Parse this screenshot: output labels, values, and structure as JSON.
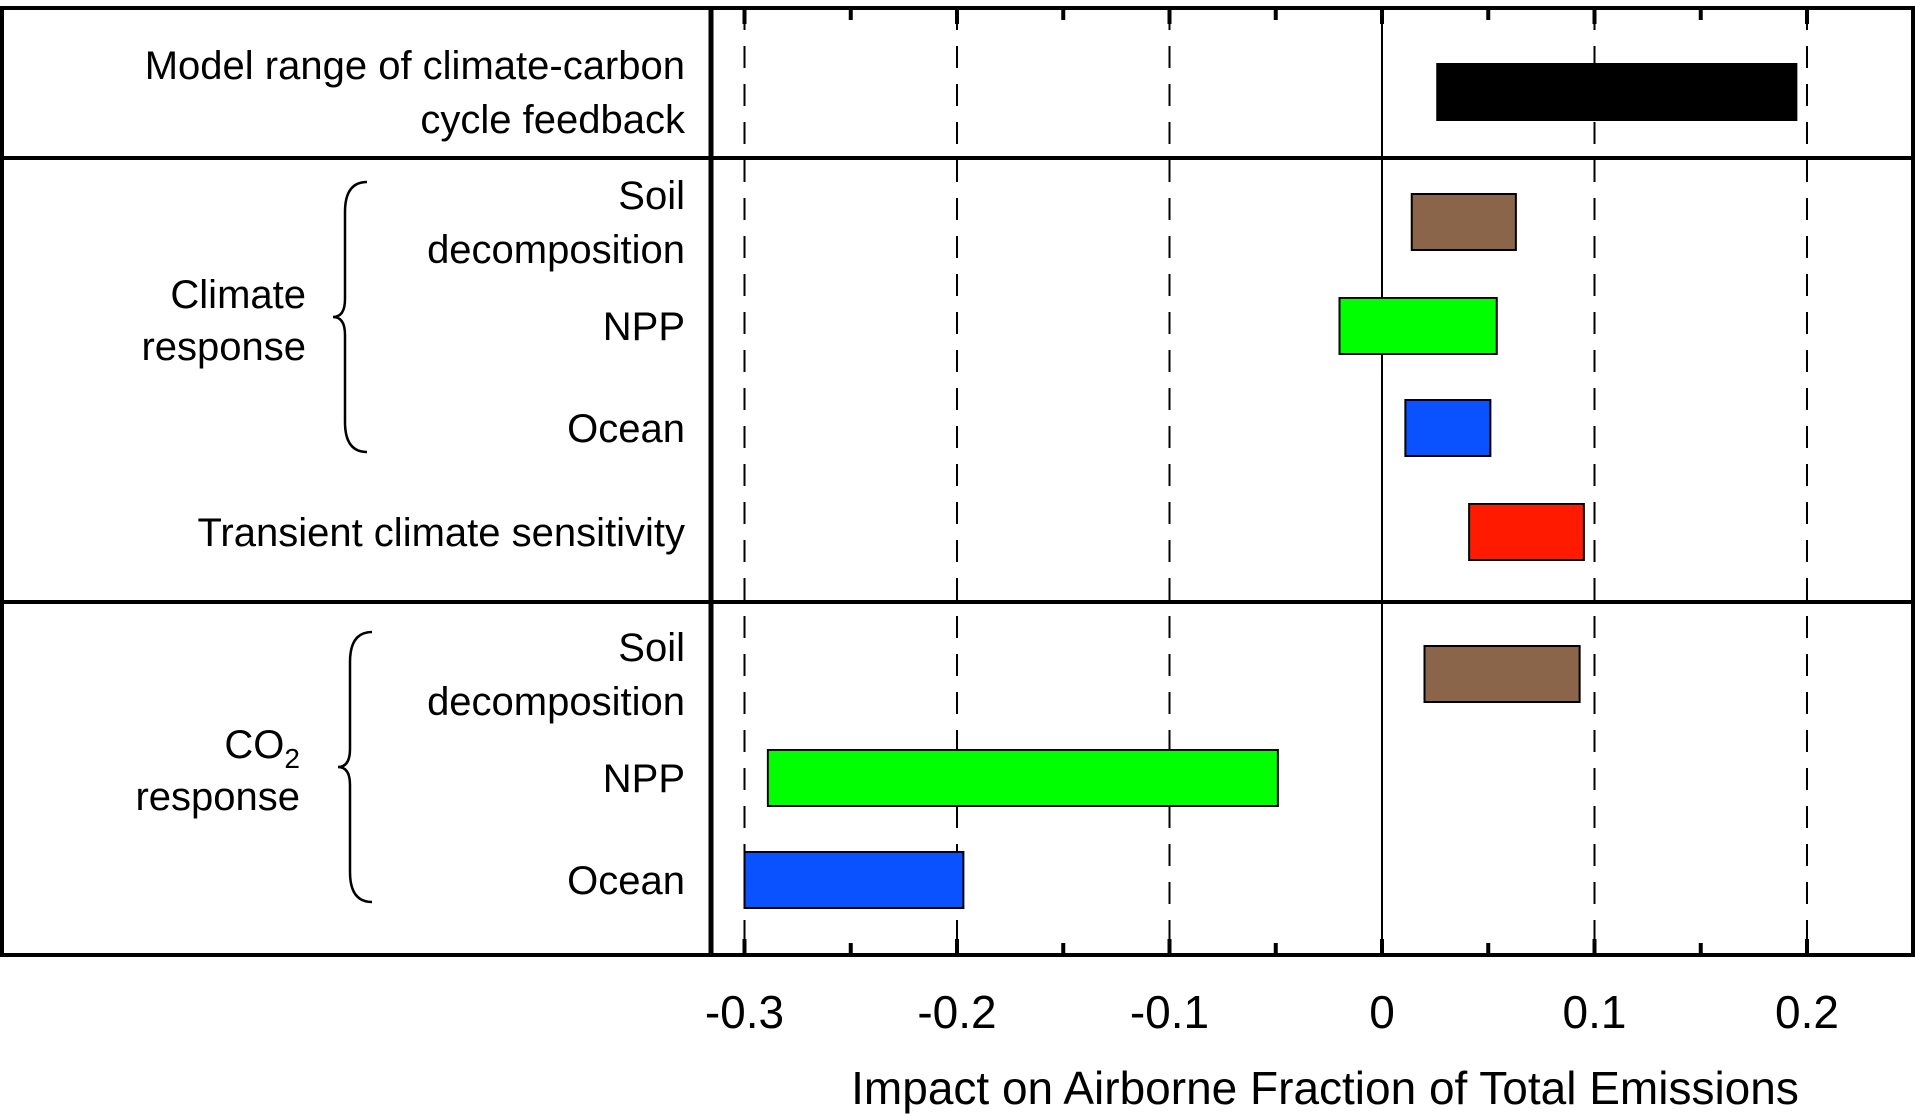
{
  "chart_data": {
    "type": "bar",
    "orientation": "horizontal-range",
    "xlabel": "Impact on Airborne Fraction of Total Emissions",
    "xlim": [
      -0.315,
      0.25
    ],
    "xticks": [
      {
        "value": -0.3,
        "label": "-0.3"
      },
      {
        "value": -0.2,
        "label": "-0.2"
      },
      {
        "value": -0.1,
        "label": "-0.1"
      },
      {
        "value": 0,
        "label": "0"
      },
      {
        "value": 0.1,
        "label": "0.1"
      },
      {
        "value": 0.2,
        "label": "0.2"
      }
    ],
    "minor_ticks": [
      -0.25,
      -0.15,
      -0.05,
      0.05,
      0.15
    ],
    "grid": "dashed vertical at major ticks, solid at 0",
    "groups": [
      {
        "label_lines": [],
        "rows": 1
      },
      {
        "label_lines": [
          "Climate",
          "response"
        ],
        "rows": 4,
        "brace_rows": 3
      },
      {
        "label_lines": [
          "CO",
          "response"
        ],
        "label_subscript": "2",
        "rows": 3,
        "brace_rows": 3
      }
    ],
    "bars": [
      {
        "label_lines": [
          "Model range of climate-carbon",
          "cycle feedback"
        ],
        "start": 0.026,
        "end": 0.195,
        "color": "#000000"
      },
      {
        "label_lines": [
          "Soil",
          "decomposition"
        ],
        "start": 0.014,
        "end": 0.063,
        "color": "#8b6549"
      },
      {
        "label_lines": [
          "NPP"
        ],
        "start": -0.02,
        "end": 0.054,
        "color": "#00ff00"
      },
      {
        "label_lines": [
          "Ocean"
        ],
        "start": 0.011,
        "end": 0.051,
        "color": "#0a52ff"
      },
      {
        "label_lines": [
          "Transient climate sensitivity"
        ],
        "start": 0.041,
        "end": 0.095,
        "color": "#ff1a00"
      },
      {
        "label_lines": [
          "Soil",
          "decomposition"
        ],
        "start": 0.02,
        "end": 0.093,
        "color": "#8b6549"
      },
      {
        "label_lines": [
          "NPP"
        ],
        "start": -0.289,
        "end": -0.049,
        "color": "#00ff00"
      },
      {
        "label_lines": [
          "Ocean"
        ],
        "start": -0.3,
        "end": -0.197,
        "color": "#0a52ff"
      }
    ]
  }
}
